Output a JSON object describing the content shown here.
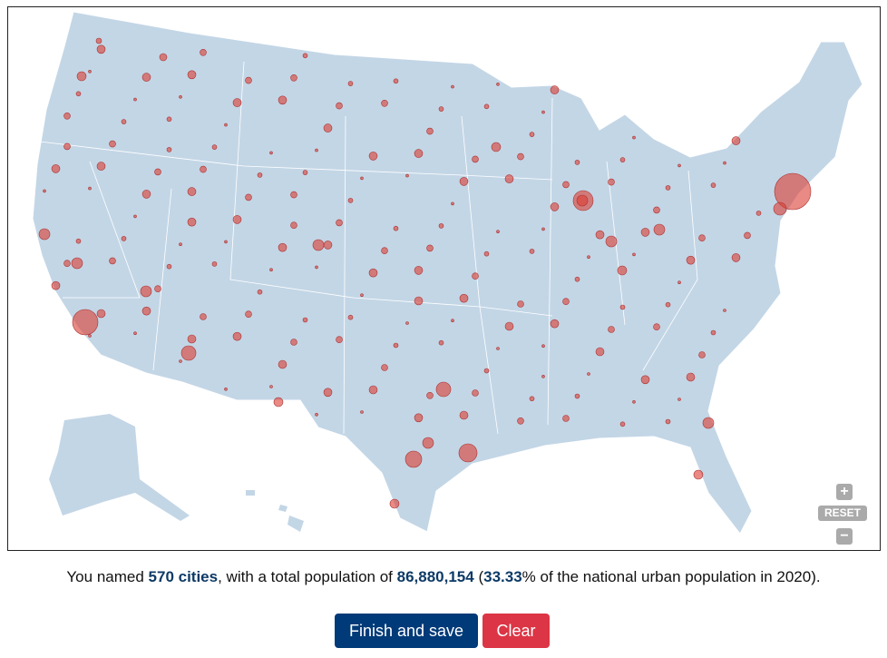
{
  "map_controls": {
    "zoom_in": "+",
    "reset": "RESET",
    "zoom_out": "−"
  },
  "summary": {
    "prefix": "You named",
    "cities": "570 cities",
    "middle": ", with a total population of",
    "population": "86,880,154",
    "open": "(",
    "percent": "33.33",
    "suffix": "% of the national urban population in 2020)."
  },
  "buttons": [
    "Finish and save",
    "Clear"
  ]
}
